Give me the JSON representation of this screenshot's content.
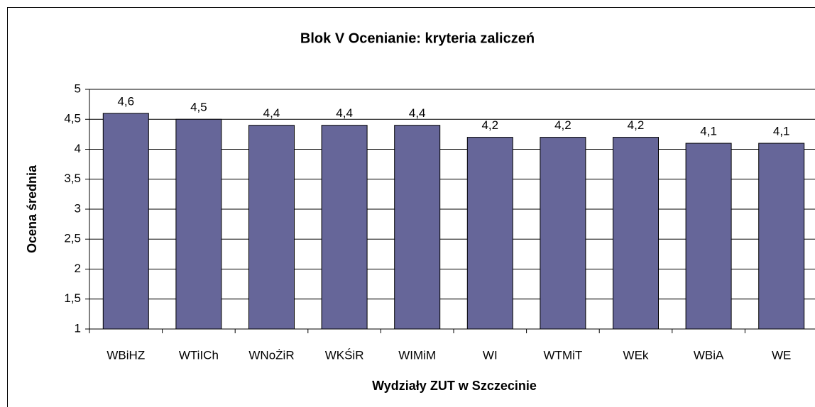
{
  "chart_data": {
    "type": "bar",
    "title": "Blok V Ocenianie: kryteria zaliczeń",
    "x_label": "Wydziały ZUT w Szczecinie",
    "y_label": "Ocena średnia",
    "categories": [
      "WBiHZ",
      "WTiICh",
      "WNoŻiR",
      "WKŚiR",
      "WIMiM",
      "WI",
      "WTMiT",
      "WEk",
      "WBiA",
      "WE"
    ],
    "values": [
      4.6,
      4.5,
      4.4,
      4.4,
      4.4,
      4.2,
      4.2,
      4.2,
      4.1,
      4.1
    ],
    "value_labels": [
      "4,6",
      "4,5",
      "4,4",
      "4,4",
      "4,4",
      "4,2",
      "4,2",
      "4,2",
      "4,1",
      "4,1"
    ],
    "color": "#666699",
    "ylim": [
      1,
      5
    ],
    "yticks": [
      1,
      {
        "value": 1.5,
        "label": "1,5"
      },
      2,
      {
        "value": 2.5,
        "label": "2,5"
      },
      3,
      {
        "value": 3.5,
        "label": "3,5"
      },
      4,
      {
        "value": 4.5,
        "label": "4,5"
      },
      5
    ],
    "grid": true
  }
}
